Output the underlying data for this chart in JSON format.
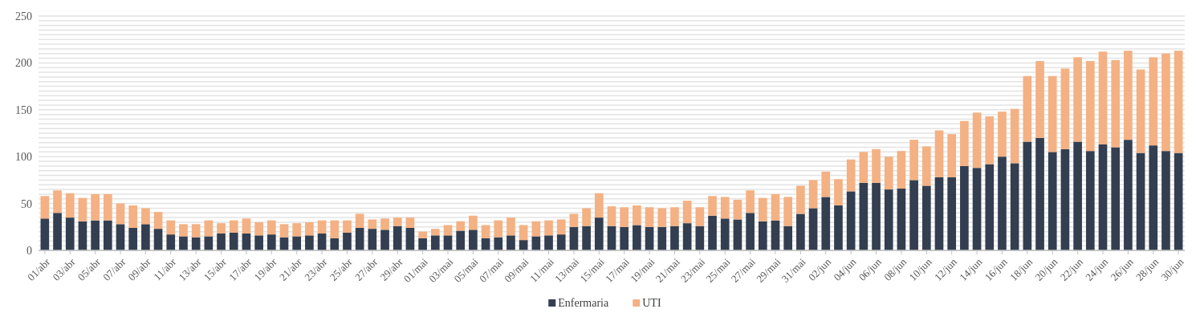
{
  "chart_data": {
    "type": "bar",
    "stacked": true,
    "categories": [
      "01/abr",
      null,
      "03/abr",
      null,
      "05/abr",
      null,
      "07/abr",
      null,
      "09/abr",
      null,
      "11/abr",
      null,
      "13/abr",
      null,
      "15/abr",
      null,
      "17/abr",
      null,
      "19/abr",
      null,
      "21/abr",
      null,
      "23/abr",
      null,
      "25/abr",
      null,
      "27/abr",
      null,
      "29/abr",
      null,
      "01/mai",
      null,
      "03/mai",
      null,
      "05/mai",
      null,
      "07/mai",
      null,
      "09/mai",
      null,
      "11/mai",
      null,
      "13/mai",
      null,
      "15/mai",
      null,
      "17/mai",
      null,
      "19/mai",
      null,
      "21/mai",
      null,
      "23/mai",
      null,
      "25/mai",
      null,
      "27/mai",
      null,
      "29/mai",
      null,
      "31/mai",
      null,
      "02/jun",
      null,
      "04/jun",
      null,
      "06/jun",
      null,
      "08/jun",
      null,
      "10/jun",
      null,
      "12/jun",
      null,
      "14/jun",
      null,
      "16/jun",
      null,
      "18/jun",
      null,
      "20/jun",
      null,
      "22/jun",
      null,
      "24/jun",
      null,
      "26/jun",
      null,
      "28/jun",
      null,
      "30/jun"
    ],
    "series": [
      {
        "name": "Enfermaria",
        "color": "#333f50",
        "values": [
          34,
          40,
          35,
          31,
          32,
          32,
          28,
          24,
          28,
          23,
          17,
          15,
          14,
          15,
          18,
          19,
          18,
          16,
          17,
          14,
          15,
          16,
          18,
          13,
          19,
          24,
          23,
          22,
          26,
          24,
          13,
          16,
          16,
          21,
          22,
          13,
          14,
          16,
          11,
          15,
          16,
          17,
          25,
          26,
          35,
          26,
          25,
          27,
          25,
          25,
          26,
          29,
          26,
          37,
          34,
          33,
          40,
          31,
          32,
          26,
          39,
          45,
          57,
          48,
          63,
          72,
          72,
          65,
          66,
          75,
          69,
          78,
          78,
          90,
          88,
          92,
          100,
          93,
          116,
          120,
          105,
          108,
          116,
          106,
          113,
          110,
          118,
          104,
          112,
          106,
          104
        ]
      },
      {
        "name": "UTI",
        "color": "#f4b183",
        "values": [
          24,
          24,
          26,
          25,
          28,
          28,
          22,
          24,
          17,
          18,
          15,
          13,
          14,
          17,
          11,
          13,
          16,
          14,
          15,
          14,
          14,
          14,
          14,
          19,
          13,
          15,
          10,
          12,
          9,
          11,
          7,
          7,
          11,
          10,
          15,
          14,
          18,
          19,
          16,
          16,
          16,
          16,
          14,
          19,
          26,
          21,
          21,
          21,
          21,
          20,
          20,
          24,
          20,
          21,
          23,
          21,
          24,
          25,
          28,
          31,
          30,
          30,
          27,
          28,
          34,
          33,
          36,
          35,
          40,
          43,
          42,
          50,
          46,
          48,
          59,
          51,
          48,
          58,
          70,
          82,
          81,
          86,
          90,
          96,
          99,
          93,
          95,
          89,
          94,
          104,
          109
        ]
      }
    ],
    "ylim": [
      0,
      250
    ],
    "yticks": [
      0,
      {
        "value": 5,
        "label": null
      },
      {
        "value": 10,
        "label": null
      },
      {
        "value": 15,
        "label": null
      },
      {
        "value": 20,
        "label": null
      },
      {
        "value": 25,
        "label": null
      },
      {
        "value": 30,
        "label": null
      },
      {
        "value": 35,
        "label": null
      },
      {
        "value": 40,
        "label": null
      },
      {
        "value": 45,
        "label": null
      },
      50,
      {
        "value": 55,
        "label": null
      },
      {
        "value": 60,
        "label": null
      },
      {
        "value": 65,
        "label": null
      },
      {
        "value": 70,
        "label": null
      },
      {
        "value": 75,
        "label": null
      },
      {
        "value": 80,
        "label": null
      },
      {
        "value": 85,
        "label": null
      },
      {
        "value": 90,
        "label": null
      },
      {
        "value": 95,
        "label": null
      },
      100,
      {
        "value": 105,
        "label": null
      },
      {
        "value": 110,
        "label": null
      },
      {
        "value": 115,
        "label": null
      },
      {
        "value": 120,
        "label": null
      },
      {
        "value": 125,
        "label": null
      },
      {
        "value": 130,
        "label": null
      },
      {
        "value": 135,
        "label": null
      },
      {
        "value": 140,
        "label": null
      },
      {
        "value": 145,
        "label": null
      },
      150,
      {
        "value": 155,
        "label": null
      },
      {
        "value": 160,
        "label": null
      },
      {
        "value": 165,
        "label": null
      },
      {
        "value": 170,
        "label": null
      },
      {
        "value": 175,
        "label": null
      },
      {
        "value": 180,
        "label": null
      },
      {
        "value": 185,
        "label": null
      },
      {
        "value": 190,
        "label": null
      },
      {
        "value": 195,
        "label": null
      },
      200,
      {
        "value": 205,
        "label": null
      },
      {
        "value": 210,
        "label": null
      },
      {
        "value": 215,
        "label": null
      },
      {
        "value": 220,
        "label": null
      },
      {
        "value": 225,
        "label": null
      },
      {
        "value": 230,
        "label": null
      },
      {
        "value": 235,
        "label": null
      },
      {
        "value": 240,
        "label": null
      },
      {
        "value": 245,
        "label": null
      },
      250
    ],
    "grid": "y",
    "legend": "bottom"
  }
}
